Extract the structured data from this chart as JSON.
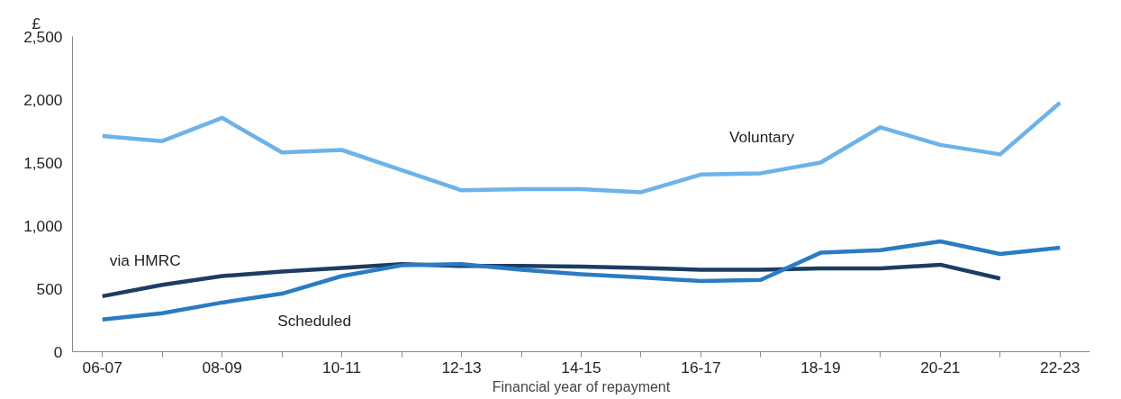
{
  "chart_data": {
    "type": "line",
    "ylabel": "£",
    "xlabel": "Financial year of repayment",
    "categories": [
      "06-07",
      null,
      "08-09",
      null,
      "10-11",
      null,
      "12-13",
      null,
      "14-15",
      null,
      "16-17",
      null,
      "18-19",
      null,
      "20-21",
      null,
      "22-23"
    ],
    "series": [
      {
        "name": "Voluntary",
        "color": "#6db3e8",
        "values": [
          1710,
          1670,
          1855,
          1580,
          1600,
          1440,
          1280,
          1290,
          1290,
          1265,
          1405,
          1415,
          1500,
          1780,
          1640,
          1565,
          1975
        ]
      },
      {
        "name": "via HMRC",
        "color": "#1c3d63",
        "values": [
          440,
          530,
          600,
          635,
          665,
          695,
          680,
          680,
          675,
          665,
          650,
          650,
          660,
          660,
          690,
          580,
          null
        ]
      },
      {
        "name": "Scheduled",
        "color": "#2b7bc3",
        "values": [
          255,
          305,
          390,
          460,
          600,
          685,
          695,
          650,
          615,
          590,
          560,
          570,
          785,
          805,
          875,
          775,
          825
        ]
      }
    ],
    "ylim": [
      0,
      2500
    ],
    "yticks": [
      0,
      {
        "value": 500,
        "label": "500"
      },
      {
        "value": 1000,
        "label": "1,000"
      },
      {
        "value": 1500,
        "label": "1,500"
      },
      {
        "value": 2000,
        "label": "2,000"
      },
      {
        "value": 2500,
        "label": "2,500"
      }
    ],
    "grid": false,
    "marker": "none",
    "line_style": "solid"
  }
}
